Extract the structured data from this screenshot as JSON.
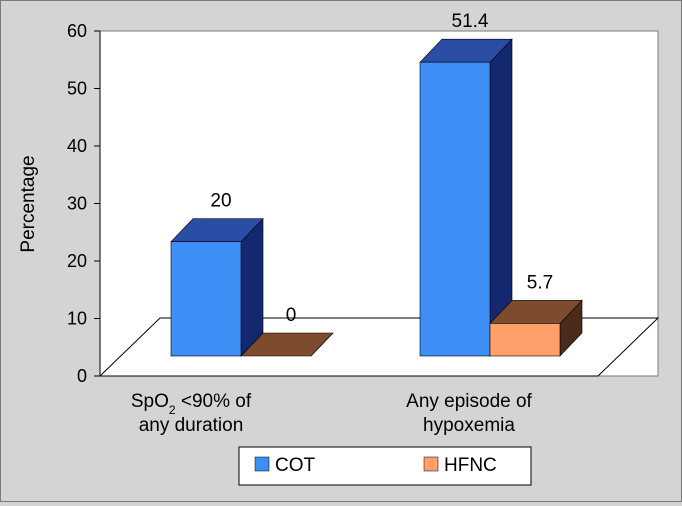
{
  "chart_data": {
    "type": "bar",
    "title": "",
    "ylabel": "Percentage",
    "xlabel": "",
    "ylim": [
      0,
      60
    ],
    "yticks": [
      0,
      10,
      20,
      30,
      40,
      50,
      60
    ],
    "categories": [
      {
        "lines": [
          "SpO",
          "2",
          " <90% of",
          "any duration"
        ]
      },
      {
        "lines": [
          "Any episode of",
          "hypoxemia"
        ]
      }
    ],
    "series": [
      {
        "name": "COT",
        "values": [
          20,
          51.4
        ],
        "labels": [
          "20",
          "51.4"
        ],
        "color": "#3d8ff5",
        "top_color": "#2a4ea6",
        "side_color": "#13286e"
      },
      {
        "name": "HFNC",
        "values": [
          0,
          5.7
        ],
        "labels": [
          "0",
          "5.7"
        ],
        "color": "#ff9f6a",
        "top_color": "#7d4b2e",
        "side_color": "#4a2c1a"
      }
    ],
    "grid": false,
    "legend_position": "bottom",
    "three_d": true
  }
}
